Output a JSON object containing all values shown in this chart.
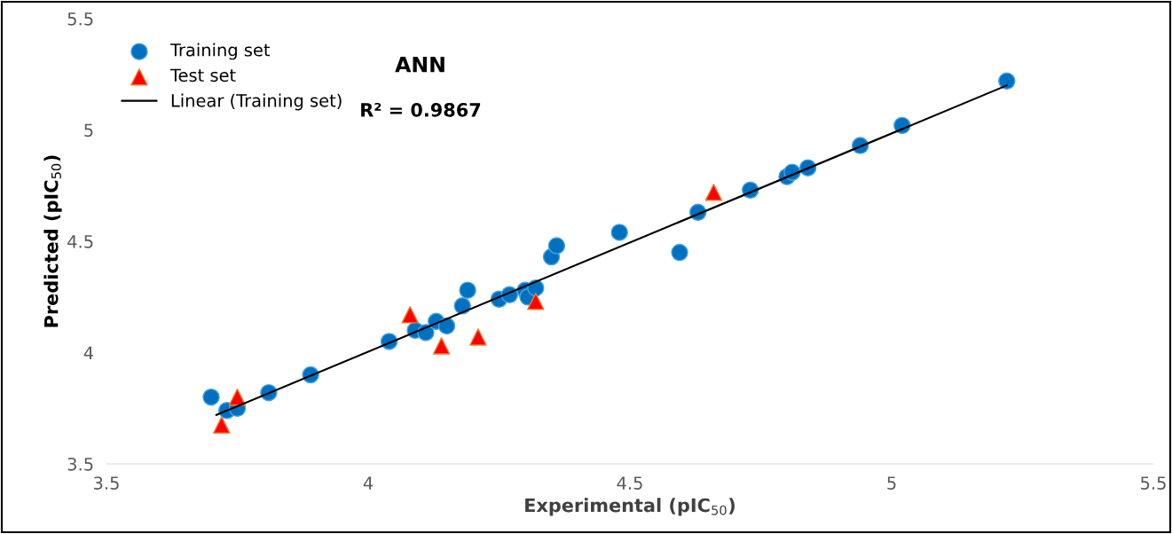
{
  "chart_data": {
    "type": "scatter",
    "title": "ANN",
    "annotations": [
      "R² = 0.9867"
    ],
    "xlabel": "Experimental (pIC$_{50}$)",
    "ylabel": "Predicted (pIC$_{50}$)",
    "xlim": [
      3.5,
      5.5
    ],
    "ylim": [
      3.5,
      5.5
    ],
    "xticks": [
      3.5,
      4,
      4.5,
      5,
      5.5
    ],
    "yticks": [
      3.5,
      4,
      4.5,
      5,
      5.5
    ],
    "grid": false,
    "legend": "top left",
    "series": [
      {
        "name": "Training set",
        "marker": "circle",
        "color": "#0070c0",
        "x": [
          3.7,
          3.73,
          3.75,
          3.81,
          3.89,
          4.04,
          4.09,
          4.11,
          4.13,
          4.15,
          4.18,
          4.19,
          4.25,
          4.27,
          4.3,
          4.305,
          4.32,
          4.35,
          4.36,
          4.48,
          4.595,
          4.63,
          4.73,
          4.8,
          4.81,
          4.84,
          4.94,
          5.02,
          5.22
        ],
        "values": [
          3.8,
          3.74,
          3.75,
          3.82,
          3.9,
          4.05,
          4.1,
          4.09,
          4.14,
          4.12,
          4.21,
          4.28,
          4.24,
          4.26,
          4.28,
          4.25,
          4.29,
          4.43,
          4.48,
          4.54,
          4.45,
          4.63,
          4.73,
          4.79,
          4.81,
          4.83,
          4.93,
          5.02,
          5.22
        ]
      },
      {
        "name": "Test set",
        "marker": "triangle",
        "color": "#ff0000",
        "x": [
          3.72,
          3.75,
          4.08,
          4.14,
          4.21,
          4.32,
          4.66
        ],
        "values": [
          3.675,
          3.8,
          4.17,
          4.03,
          4.07,
          4.23,
          4.72
        ]
      },
      {
        "name": "Linear (Training set)",
        "type": "line",
        "color": "#000000",
        "line_style": "solid",
        "x": [
          3.71,
          5.22
        ],
        "values": [
          3.72,
          5.2
        ]
      }
    ]
  }
}
